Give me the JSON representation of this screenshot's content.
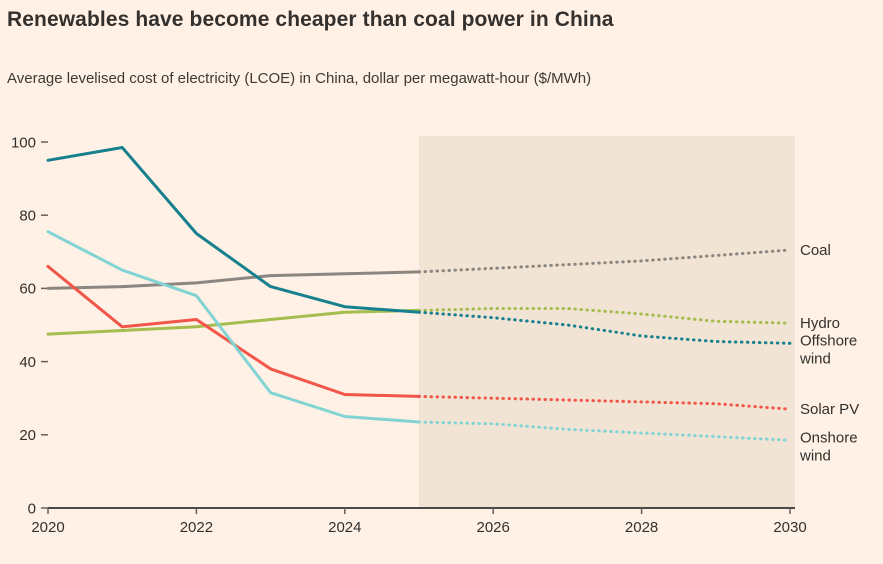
{
  "title": "Renewables have become cheaper than coal power in China",
  "subtitle": "Average levelised cost of electricity (LCOE) in China, dollar per megawatt-hour ($/MWh)",
  "colors": {
    "background": "#FFF1E5",
    "forecast_band": "#F2E4D4",
    "axis": "#4D4845",
    "tick": "#66605C",
    "tick_label": "#33302E",
    "series_label": "#33302E"
  },
  "chart_data": {
    "type": "line",
    "title": "Renewables have become cheaper than coal power in China",
    "subtitle": "Average levelised cost of electricity (LCOE) in China, dollar per megawatt-hour ($/MWh)",
    "xlabel": "",
    "ylabel": "$/MWh",
    "x": [
      2020,
      2021,
      2022,
      2023,
      2024,
      2025,
      2026,
      2027,
      2028,
      2029,
      2030
    ],
    "xticks": [
      2020,
      2022,
      2024,
      2026,
      2028,
      2030
    ],
    "ylim": [
      0,
      100
    ],
    "yticks": [
      0,
      20,
      40,
      60,
      80,
      100
    ],
    "grid": false,
    "legend_position": "right-of-line-end",
    "forecast_start": 2025,
    "forecast_style": "dotted",
    "series": [
      {
        "name": "Coal",
        "label_lines": [
          "Coal"
        ],
        "color": "#8C8680",
        "values": [
          60,
          60.5,
          61.5,
          63.5,
          64,
          64.5,
          65.5,
          66.5,
          67.5,
          69,
          70.5
        ]
      },
      {
        "name": "Hydro",
        "label_lines": [
          "Hydro"
        ],
        "color": "#A4BD4E",
        "values": [
          47.5,
          48.5,
          49.5,
          51.5,
          53.5,
          54,
          54.5,
          54.5,
          53,
          51,
          50.5
        ]
      },
      {
        "name": "Offshore wind",
        "label_lines": [
          "Offshore",
          "wind"
        ],
        "color": "#16808F",
        "values": [
          95,
          98.5,
          75,
          60.5,
          55,
          53.5,
          52,
          50,
          47,
          45.5,
          45
        ]
      },
      {
        "name": "Solar PV",
        "label_lines": [
          "Solar PV"
        ],
        "color": "#F2564A",
        "values": [
          66,
          49.5,
          51.5,
          38,
          31,
          30.5,
          30,
          29.5,
          29,
          28.5,
          27
        ]
      },
      {
        "name": "Onshore wind",
        "label_lines": [
          "Onshore",
          "wind"
        ],
        "color": "#82D4D4",
        "values": [
          75.5,
          65,
          58,
          31.5,
          25,
          23.5,
          23,
          21.5,
          20.5,
          19.5,
          18.5
        ]
      }
    ]
  }
}
